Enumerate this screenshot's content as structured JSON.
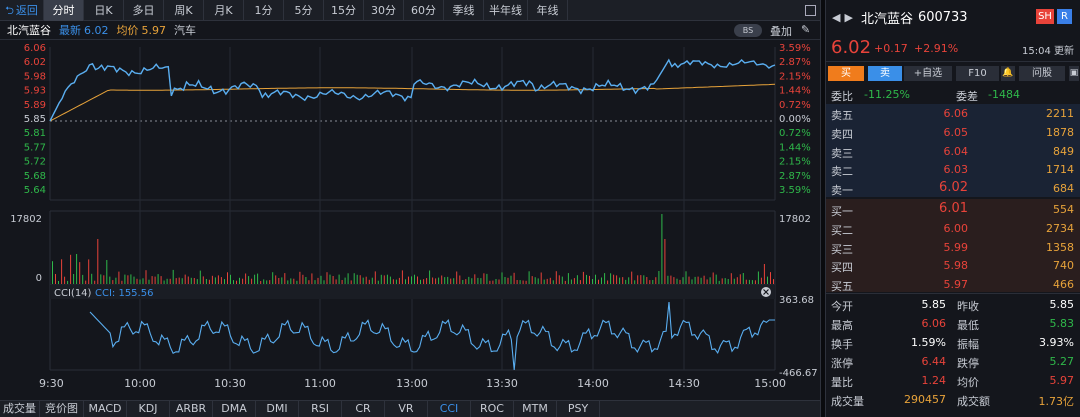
{
  "colors": {
    "up": "#e8433a",
    "down": "#2fb84a",
    "accent": "#3a8fe8",
    "avg": "#e8a33a",
    "price_line": "#5aaef0"
  },
  "toolbar": {
    "back": "返回",
    "tabs": [
      "分时",
      "日K",
      "多日",
      "周K",
      "月K",
      "1分",
      "5分",
      "15分",
      "30分",
      "60分",
      "季线",
      "半年线",
      "年线"
    ]
  },
  "subheader": {
    "name": "北汽蓝谷",
    "latest_label": "最新",
    "latest": "6.02",
    "avg_label": "均价",
    "avg": "5.97",
    "sector": "汽车",
    "bs": "BS",
    "overlay": "叠加"
  },
  "main_chart": {
    "y_left": [
      "6.06",
      "6.02",
      "5.98",
      "5.93",
      "5.89",
      "5.85",
      "5.81",
      "5.77",
      "5.72",
      "5.68",
      "5.64"
    ],
    "y_right": [
      "3.59%",
      "2.87%",
      "2.15%",
      "1.44%",
      "0.72%",
      "0.00%",
      "0.72%",
      "1.44%",
      "2.15%",
      "2.87%",
      "3.59%"
    ]
  },
  "volume": {
    "max": "17802",
    "zero": "0",
    "max_right": "17802"
  },
  "cci": {
    "title": "CCI(14)",
    "value_label": "CCI: 155.56",
    "max": "363.68",
    "min": "-466.67"
  },
  "x_labels": [
    "9:30",
    "10:00",
    "10:30",
    "11:00",
    "13:00",
    "13:30",
    "14:00",
    "14:30",
    "15:00"
  ],
  "bottom_tabs": [
    "成交量",
    "竞价图",
    "MACD",
    "KDJ",
    "ARBR",
    "DMA",
    "DMI",
    "RSI",
    "CR",
    "VR",
    "CCI",
    "ROC",
    "MTM",
    "PSY"
  ],
  "quote": {
    "name": "北汽蓝谷",
    "code": "600733",
    "badge_sh": "SH",
    "badge_r": "R",
    "price": "6.02",
    "change": "+0.17",
    "change_pct": "+2.91%",
    "time": "15:04 更新"
  },
  "actions": {
    "buy": "买",
    "sell": "卖",
    "watch": "+自选",
    "f10": "F10",
    "ask": "问股"
  },
  "weibi": {
    "label1": "委比",
    "val1": "-11.25%",
    "label2": "委差",
    "val2": "-1484"
  },
  "asks": [
    {
      "label": "卖五",
      "price": "6.06",
      "vol": "2211"
    },
    {
      "label": "卖四",
      "price": "6.05",
      "vol": "1878"
    },
    {
      "label": "卖三",
      "price": "6.04",
      "vol": "849"
    },
    {
      "label": "卖二",
      "price": "6.03",
      "vol": "1714"
    },
    {
      "label": "卖一",
      "price": "6.02",
      "vol": "684"
    }
  ],
  "bids": [
    {
      "label": "买一",
      "price": "6.01",
      "vol": "554"
    },
    {
      "label": "买二",
      "price": "6.00",
      "vol": "2734"
    },
    {
      "label": "买三",
      "price": "5.99",
      "vol": "1358"
    },
    {
      "label": "买四",
      "price": "5.98",
      "vol": "740"
    },
    {
      "label": "买五",
      "price": "5.97",
      "vol": "466"
    }
  ],
  "stats": [
    {
      "l1": "今开",
      "v1": "5.85",
      "c1": "n",
      "l2": "昨收",
      "v2": "5.85",
      "c2": "n"
    },
    {
      "l1": "最高",
      "v1": "6.06",
      "c1": "up",
      "l2": "最低",
      "v2": "5.83",
      "c2": "down"
    },
    {
      "l1": "换手",
      "v1": "1.59%",
      "c1": "n",
      "l2": "振幅",
      "v2": "3.93%",
      "c2": "n"
    },
    {
      "l1": "涨停",
      "v1": "6.44",
      "c1": "up",
      "l2": "跌停",
      "v2": "5.27",
      "c2": "down"
    },
    {
      "l1": "量比",
      "v1": "1.24",
      "c1": "up",
      "l2": "均价",
      "v2": "5.97",
      "c2": "up"
    },
    {
      "l1": "成交量",
      "v1": "290457",
      "c1": "avg",
      "l2": "成交额",
      "v2": "1.73亿",
      "c2": "avg"
    }
  ]
}
